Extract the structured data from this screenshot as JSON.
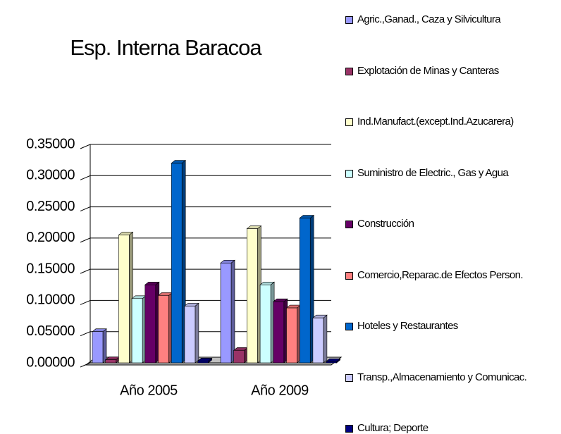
{
  "chart_data": {
    "type": "bar3d",
    "title": "Esp. Interna Baracoa",
    "categories": [
      "Año 2005",
      "Año 2009"
    ],
    "series": [
      {
        "name": "Agric.,Ganad., Caza y Silvicultura",
        "color": "#9999ff",
        "values": [
          0.05,
          0.16
        ]
      },
      {
        "name": "Explotación de Minas y Canteras",
        "color": "#993366",
        "values": [
          0.005,
          0.02
        ]
      },
      {
        "name": "Ind.Manufact.(except.Ind.Azucarera)",
        "color": "#ffffcc",
        "values": [
          0.205,
          0.215
        ]
      },
      {
        "name": "Suministro de Electric., Gas y Agua",
        "color": "#ccffff",
        "values": [
          0.103,
          0.125
        ]
      },
      {
        "name": "Construcción",
        "color": "#660066",
        "values": [
          0.125,
          0.098
        ]
      },
      {
        "name": "Comercio,Reparac.de Efectos Person.",
        "color": "#ff8080",
        "values": [
          0.108,
          0.088
        ]
      },
      {
        "name": "Hoteles y Restaurantes",
        "color": "#0066cc",
        "values": [
          0.32,
          0.232
        ]
      },
      {
        "name": "Transp.,Almacenamiento y Comunicac.",
        "color": "#ccccff",
        "values": [
          0.091,
          0.072
        ]
      },
      {
        "name": "Cultura; Deporte",
        "color": "#000080",
        "values": [
          0.003,
          0.002
        ]
      }
    ],
    "ylim": [
      0,
      0.35
    ],
    "yticks": [
      {
        "value": 0,
        "label": "0.00000"
      },
      {
        "value": 0.05,
        "label": "0.05000"
      },
      {
        "value": 0.1,
        "label": "0.10000"
      },
      {
        "value": 0.15,
        "label": "0.15000"
      },
      {
        "value": 0.2,
        "label": "0.20000"
      },
      {
        "value": 0.25,
        "label": "0.25000"
      },
      {
        "value": 0.3,
        "label": "0.30000"
      },
      {
        "value": 0.35,
        "label": "0.35000"
      }
    ],
    "grid": true,
    "legend": "right"
  }
}
